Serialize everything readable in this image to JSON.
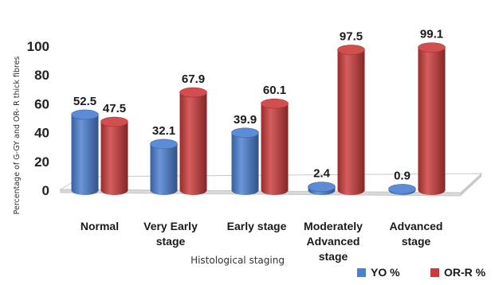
{
  "chart_data": {
    "type": "bar",
    "title": "",
    "ylabel": "Percentage of G-GY and OR- R thick fibres",
    "xlabel": "Histological staging",
    "ylim": [
      0,
      100
    ],
    "yticks": [
      0,
      20,
      40,
      60,
      80,
      100
    ],
    "categories": [
      [
        "Normal"
      ],
      [
        "Very Early",
        "stage"
      ],
      [
        "Early stage"
      ],
      [
        "Moderately",
        "Advanced",
        "stage"
      ],
      [
        "Advanced",
        "stage"
      ]
    ],
    "series": [
      {
        "name": "YO %",
        "color": "#4a7fd1",
        "values": [
          52.5,
          32.1,
          39.9,
          2.4,
          0.9
        ],
        "labels": [
          "52.5",
          "32.1",
          "39.9",
          "2.4",
          "0.9"
        ]
      },
      {
        "name": "OR-R %",
        "color": "#cc3b3b",
        "values": [
          47.5,
          67.9,
          60.1,
          97.5,
          99.1
        ],
        "labels": [
          "47.5",
          "67.9",
          "60.1",
          "97.5",
          "99.1"
        ]
      }
    ],
    "legend_position": "bottom-right",
    "grid": false,
    "style": "3d-cylinder"
  }
}
